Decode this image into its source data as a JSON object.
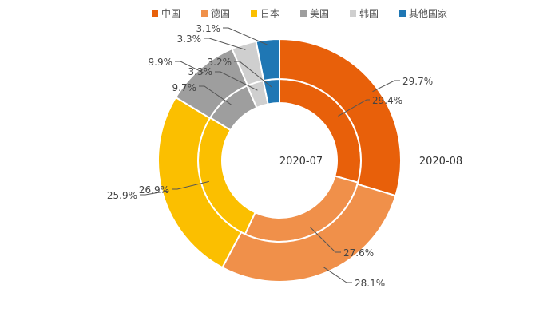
{
  "chart_data": {
    "type": "pie",
    "categories": [
      "中国",
      "德国",
      "日本",
      "美国",
      "韩国",
      "其他国家"
    ],
    "colors": [
      "#E8600A",
      "#F0904A",
      "#FBBF00",
      "#9E9E9E",
      "#CFCFCF",
      "#1F77B4"
    ],
    "series": [
      {
        "name": "2020-07",
        "values": [
          29.4,
          27.6,
          26.9,
          9.7,
          3.3,
          3.2
        ],
        "labels": [
          "29.4%",
          "27.6%",
          "26.9%",
          "9.7%",
          "3.3%",
          "3.2%"
        ]
      },
      {
        "name": "2020-08",
        "values": [
          29.7,
          28.1,
          25.9,
          9.9,
          3.3,
          3.1
        ],
        "labels": [
          "29.7%",
          "28.1%",
          "25.9%",
          "9.9%",
          "3.3%",
          "3.1%"
        ]
      }
    ],
    "legend_position": "top"
  }
}
